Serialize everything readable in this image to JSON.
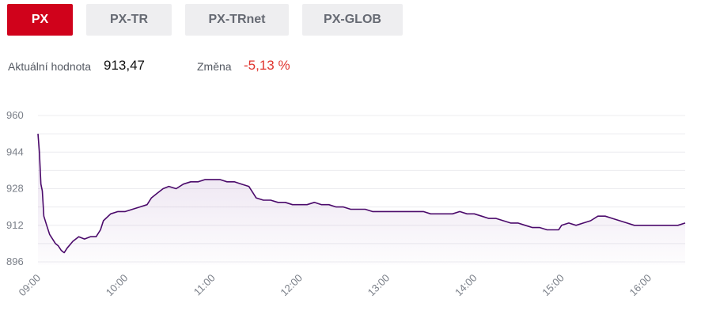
{
  "tabs": [
    {
      "label": "PX",
      "active": true
    },
    {
      "label": "PX-TR",
      "active": false
    },
    {
      "label": "PX-TRnet",
      "active": false
    },
    {
      "label": "PX-GLOB",
      "active": false
    }
  ],
  "stats": {
    "current_label": "Aktuální hodnota",
    "current_value": "913,47",
    "change_label": "Změna",
    "change_value": "-5,13 %"
  },
  "colors": {
    "accent": "#d0021b",
    "line": "#4b0a6b",
    "change_negative": "#e0342e"
  },
  "chart_data": {
    "type": "area",
    "y_ticks": [
      896,
      912,
      928,
      944,
      960
    ],
    "x_ticks": [
      "09:00",
      "10:00",
      "11:00",
      "12:00",
      "13:00",
      "14:00",
      "15:00",
      "16:00"
    ],
    "ylim": [
      896,
      960
    ],
    "grid": true,
    "series": [
      {
        "values": [
          [
            "09:00",
            952
          ],
          [
            "09:01",
            944
          ],
          [
            "09:02",
            930
          ],
          [
            "09:03",
            927
          ],
          [
            "09:04",
            916
          ],
          [
            "09:06",
            912
          ],
          [
            "09:08",
            908
          ],
          [
            "09:10",
            906
          ],
          [
            "09:12",
            904
          ],
          [
            "09:14",
            903
          ],
          [
            "09:16",
            901
          ],
          [
            "09:18",
            900
          ],
          [
            "09:20",
            902
          ],
          [
            "09:24",
            905
          ],
          [
            "09:28",
            907
          ],
          [
            "09:32",
            906
          ],
          [
            "09:36",
            907
          ],
          [
            "09:40",
            907
          ],
          [
            "09:43",
            910
          ],
          [
            "09:45",
            914
          ],
          [
            "09:50",
            917
          ],
          [
            "09:55",
            918
          ],
          [
            "10:00",
            918
          ],
          [
            "10:05",
            919
          ],
          [
            "10:10",
            920
          ],
          [
            "10:15",
            921
          ],
          [
            "10:18",
            924
          ],
          [
            "10:22",
            926
          ],
          [
            "10:26",
            928
          ],
          [
            "10:30",
            929
          ],
          [
            "10:35",
            928
          ],
          [
            "10:40",
            930
          ],
          [
            "10:45",
            931
          ],
          [
            "10:50",
            931
          ],
          [
            "10:55",
            932
          ],
          [
            "11:00",
            932
          ],
          [
            "11:05",
            932
          ],
          [
            "11:10",
            931
          ],
          [
            "11:15",
            931
          ],
          [
            "11:20",
            930
          ],
          [
            "11:25",
            929
          ],
          [
            "11:28",
            926
          ],
          [
            "11:30",
            924
          ],
          [
            "11:35",
            923
          ],
          [
            "11:40",
            923
          ],
          [
            "11:45",
            922
          ],
          [
            "11:50",
            922
          ],
          [
            "11:55",
            921
          ],
          [
            "12:00",
            921
          ],
          [
            "12:05",
            921
          ],
          [
            "12:10",
            922
          ],
          [
            "12:15",
            921
          ],
          [
            "12:20",
            921
          ],
          [
            "12:25",
            920
          ],
          [
            "12:30",
            920
          ],
          [
            "12:35",
            919
          ],
          [
            "12:40",
            919
          ],
          [
            "12:45",
            919
          ],
          [
            "12:50",
            918
          ],
          [
            "12:55",
            918
          ],
          [
            "13:00",
            918
          ],
          [
            "13:05",
            918
          ],
          [
            "13:10",
            918
          ],
          [
            "13:15",
            918
          ],
          [
            "13:20",
            918
          ],
          [
            "13:25",
            918
          ],
          [
            "13:30",
            917
          ],
          [
            "13:35",
            917
          ],
          [
            "13:40",
            917
          ],
          [
            "13:45",
            917
          ],
          [
            "13:50",
            918
          ],
          [
            "13:55",
            917
          ],
          [
            "14:00",
            917
          ],
          [
            "14:05",
            916
          ],
          [
            "14:10",
            915
          ],
          [
            "14:15",
            915
          ],
          [
            "14:20",
            914
          ],
          [
            "14:25",
            913
          ],
          [
            "14:30",
            913
          ],
          [
            "14:35",
            912
          ],
          [
            "14:40",
            911
          ],
          [
            "14:45",
            911
          ],
          [
            "14:50",
            910
          ],
          [
            "14:55",
            910
          ],
          [
            "14:58",
            910
          ],
          [
            "15:00",
            912
          ],
          [
            "15:05",
            913
          ],
          [
            "15:10",
            912
          ],
          [
            "15:15",
            913
          ],
          [
            "15:20",
            914
          ],
          [
            "15:25",
            916
          ],
          [
            "15:30",
            916
          ],
          [
            "15:35",
            915
          ],
          [
            "15:40",
            914
          ],
          [
            "15:45",
            913
          ],
          [
            "15:50",
            912
          ],
          [
            "15:55",
            912
          ],
          [
            "16:00",
            912
          ],
          [
            "16:05",
            912
          ],
          [
            "16:10",
            912
          ],
          [
            "16:15",
            912
          ],
          [
            "16:20",
            912
          ],
          [
            "16:25",
            913
          ]
        ]
      }
    ]
  }
}
